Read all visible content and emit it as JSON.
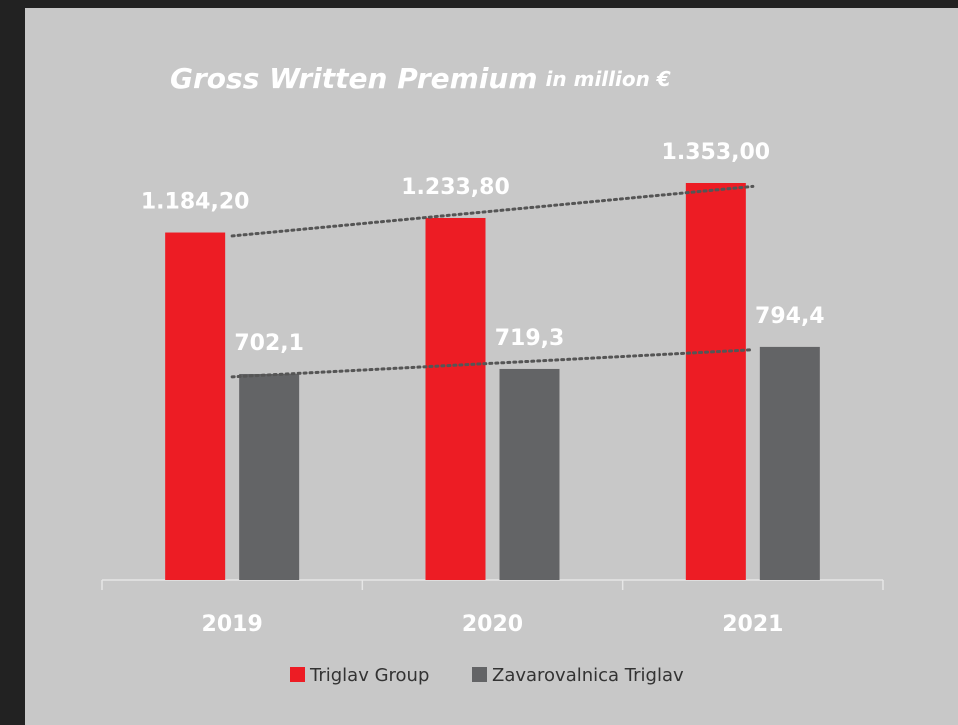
{
  "chart_data": {
    "type": "bar",
    "title": "Gross Written Premium",
    "subtitle": "in million €",
    "categories": [
      "2019",
      "2020",
      "2021"
    ],
    "series": [
      {
        "name": "Triglav Group",
        "color": "#ed1c24",
        "values": [
          1184.2,
          1233.8,
          1353.0
        ],
        "value_labels": [
          "1.184,20",
          "1.233,80",
          "1.353,00"
        ]
      },
      {
        "name": "Zavarovalnica Triglav",
        "color": "#636466",
        "values": [
          702.1,
          719.3,
          794.4
        ],
        "value_labels": [
          "702,1",
          "719,3",
          "794,4"
        ]
      }
    ],
    "trendline": true,
    "legend": "bottom"
  }
}
